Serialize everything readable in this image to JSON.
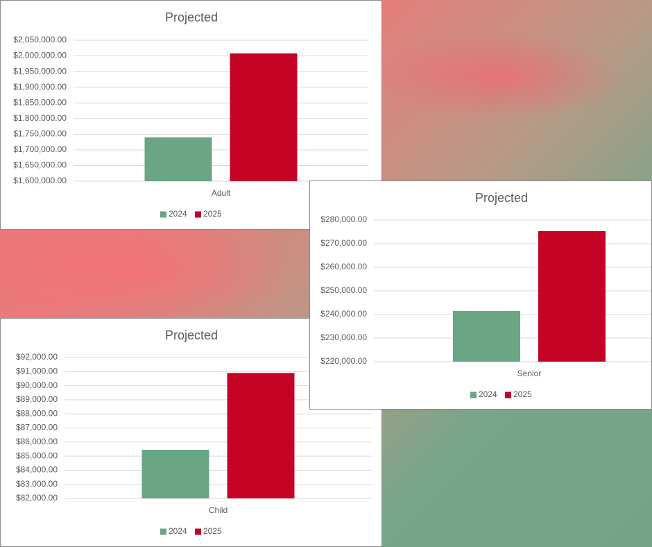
{
  "chart_data": [
    {
      "type": "bar",
      "title": "Projected",
      "categories": [
        "Adult"
      ],
      "series": [
        {
          "name": "2024",
          "color": "#6aa584",
          "values": [
            1740000
          ]
        },
        {
          "name": "2025",
          "color": "#c50425",
          "values": [
            2008000
          ]
        }
      ],
      "ylim": [
        1600000,
        2050000
      ],
      "yticks": [
        {
          "value": 1600000,
          "label": "$1,600,000.00"
        },
        {
          "value": 1650000,
          "label": "$1,650,000.00"
        },
        {
          "value": 1700000,
          "label": "$1,700,000.00"
        },
        {
          "value": 1750000,
          "label": "$1,750,000.00"
        },
        {
          "value": 1800000,
          "label": "$1,800,000.00"
        },
        {
          "value": 1850000,
          "label": "$1,850,000.00"
        },
        {
          "value": 1900000,
          "label": "$1,900,000.00"
        },
        {
          "value": 1950000,
          "label": "$1,950,000.00"
        },
        {
          "value": 2000000,
          "label": "$2,000,000.00"
        },
        {
          "value": 2050000,
          "label": "$2,050,000.00"
        }
      ],
      "grid": true,
      "legend": "bottom"
    },
    {
      "type": "bar",
      "title": "Projected",
      "categories": [
        "Senior"
      ],
      "series": [
        {
          "name": "2024",
          "color": "#6aa584",
          "values": [
            241500
          ]
        },
        {
          "name": "2025",
          "color": "#c50425",
          "values": [
            275300
          ]
        }
      ],
      "ylim": [
        220000,
        280000
      ],
      "yticks": [
        {
          "value": 220000,
          "label": "$220,000.00"
        },
        {
          "value": 230000,
          "label": "$230,000.00"
        },
        {
          "value": 240000,
          "label": "$240,000.00"
        },
        {
          "value": 250000,
          "label": "$250,000.00"
        },
        {
          "value": 260000,
          "label": "$260,000.00"
        },
        {
          "value": 270000,
          "label": "$270,000.00"
        },
        {
          "value": 280000,
          "label": "$280,000.00"
        }
      ],
      "grid": true,
      "legend": "bottom"
    },
    {
      "type": "bar",
      "title": "Projected",
      "categories": [
        "Child"
      ],
      "series": [
        {
          "name": "2024",
          "color": "#6aa584",
          "values": [
            85450
          ]
        },
        {
          "name": "2025",
          "color": "#c50425",
          "values": [
            90900
          ]
        }
      ],
      "ylim": [
        82000,
        92000
      ],
      "yticks": [
        {
          "value": 82000,
          "label": "$82,000.00"
        },
        {
          "value": 83000,
          "label": "$83,000.00"
        },
        {
          "value": 84000,
          "label": "$84,000.00"
        },
        {
          "value": 85000,
          "label": "$85,000.00"
        },
        {
          "value": 86000,
          "label": "$86,000.00"
        },
        {
          "value": 87000,
          "label": "$87,000.00"
        },
        {
          "value": 88000,
          "label": "$88,000.00"
        },
        {
          "value": 89000,
          "label": "$89,000.00"
        },
        {
          "value": 90000,
          "label": "$90,000.00"
        },
        {
          "value": 91000,
          "label": "$91,000.00"
        },
        {
          "value": 92000,
          "label": "$92,000.00"
        }
      ],
      "grid": true,
      "legend": "bottom"
    }
  ]
}
